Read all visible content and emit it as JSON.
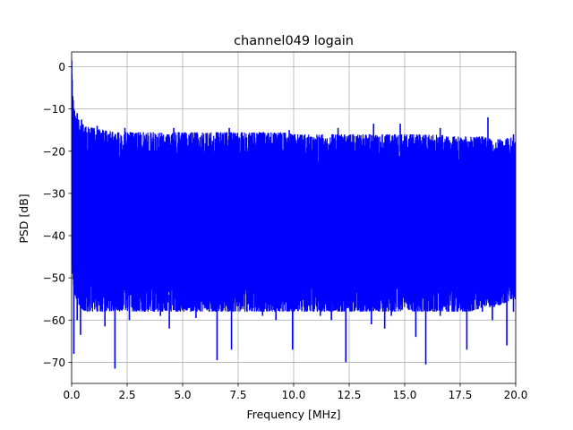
{
  "chart_data": {
    "type": "line",
    "title": "channel049 logain",
    "xlabel": "Frequency [MHz]",
    "ylabel": "PSD [dB]",
    "xlim": [
      0,
      20
    ],
    "ylim": [
      -75,
      3.5
    ],
    "x_ticks": [
      0,
      2.5,
      5,
      7.5,
      10,
      12.5,
      15,
      17.5,
      20
    ],
    "x_tick_labels": [
      "0.0",
      "2.5",
      "5.0",
      "7.5",
      "10.0",
      "12.5",
      "15.0",
      "17.5",
      "20.0"
    ],
    "y_ticks": [
      0,
      -10,
      -20,
      -30,
      -40,
      -50,
      -60,
      -70
    ],
    "y_tick_labels": [
      "0",
      "−10",
      "−20",
      "−30",
      "−40",
      "−50",
      "−60",
      "−70"
    ],
    "grid": true,
    "line_color": "#0000ff",
    "series": [
      {
        "x": [
          0.0,
          0.05,
          0.1,
          0.2,
          0.4,
          0.6,
          1.0,
          1.5,
          2.0,
          2.5,
          3.0,
          3.5,
          4.0,
          4.5,
          5.0,
          5.5,
          6.0,
          6.5,
          7.0,
          7.5,
          8.0,
          8.5,
          9.0,
          9.5,
          10.0,
          10.5,
          11.0,
          11.5,
          12.0,
          12.5,
          13.0,
          13.5,
          14.0,
          14.5,
          15.0,
          15.5,
          16.0,
          16.5,
          17.0,
          17.5,
          18.0,
          18.5,
          19.0,
          19.5,
          20.0
        ],
        "upper_envelope": [
          1.5,
          -6,
          -9.5,
          -12,
          -13,
          -14,
          -14.5,
          -15,
          -15.5,
          -15.5,
          -15.5,
          -15.5,
          -15.5,
          -15.5,
          -15.5,
          -15.5,
          -15.5,
          -15.5,
          -15.5,
          -15.5,
          -15.5,
          -15.5,
          -15.5,
          -15.5,
          -16,
          -16,
          -16,
          -16,
          -16,
          -16,
          -16,
          -16,
          -16,
          -16,
          -16,
          -16,
          -16,
          -16,
          -16.5,
          -16.5,
          -16.5,
          -16.5,
          -17,
          -17,
          -16.5
        ],
        "lower_envelope": [
          -47,
          -50,
          -53,
          -55,
          -57,
          -58,
          -58,
          -58,
          -58,
          -58,
          -58,
          -58,
          -58,
          -58,
          -58,
          -58,
          -58,
          -58,
          -58,
          -58,
          -58,
          -58,
          -58,
          -58,
          -58,
          -58,
          -58,
          -58,
          -58,
          -58,
          -58,
          -58,
          -58,
          -58,
          -58,
          -58,
          -58,
          -58,
          -58,
          -58,
          -58,
          -57,
          -57,
          -56,
          -55
        ],
        "dips": [
          {
            "x": 0.1,
            "y": -68
          },
          {
            "x": 0.25,
            "y": -60
          },
          {
            "x": 0.4,
            "y": -63.5
          },
          {
            "x": 1.15,
            "y": -58
          },
          {
            "x": 1.5,
            "y": -61.5
          },
          {
            "x": 1.95,
            "y": -71.5
          },
          {
            "x": 2.6,
            "y": -60
          },
          {
            "x": 3.3,
            "y": -58
          },
          {
            "x": 4.0,
            "y": -59
          },
          {
            "x": 4.4,
            "y": -62
          },
          {
            "x": 5.6,
            "y": -59.5
          },
          {
            "x": 6.2,
            "y": -58
          },
          {
            "x": 6.55,
            "y": -69.5
          },
          {
            "x": 7.2,
            "y": -67
          },
          {
            "x": 7.9,
            "y": -58
          },
          {
            "x": 8.6,
            "y": -59
          },
          {
            "x": 9.2,
            "y": -60
          },
          {
            "x": 9.95,
            "y": -67
          },
          {
            "x": 10.5,
            "y": -58
          },
          {
            "x": 11.2,
            "y": -59
          },
          {
            "x": 11.7,
            "y": -60
          },
          {
            "x": 12.35,
            "y": -70
          },
          {
            "x": 13.0,
            "y": -58
          },
          {
            "x": 13.5,
            "y": -61
          },
          {
            "x": 14.1,
            "y": -62
          },
          {
            "x": 14.4,
            "y": -59
          },
          {
            "x": 15.5,
            "y": -64
          },
          {
            "x": 15.95,
            "y": -70.5
          },
          {
            "x": 16.6,
            "y": -59
          },
          {
            "x": 17.2,
            "y": -58
          },
          {
            "x": 17.8,
            "y": -67
          },
          {
            "x": 18.5,
            "y": -58
          },
          {
            "x": 18.95,
            "y": -60
          },
          {
            "x": 19.6,
            "y": -66
          },
          {
            "x": 19.9,
            "y": -58
          }
        ],
        "peaks": [
          {
            "x": 0.0,
            "y": 1.5
          },
          {
            "x": 0.05,
            "y": -7
          },
          {
            "x": 0.25,
            "y": -11
          },
          {
            "x": 0.45,
            "y": -12.5
          },
          {
            "x": 1.15,
            "y": -14
          },
          {
            "x": 2.4,
            "y": -14.5
          },
          {
            "x": 4.6,
            "y": -14.5
          },
          {
            "x": 7.1,
            "y": -14.5
          },
          {
            "x": 9.8,
            "y": -15
          },
          {
            "x": 12.0,
            "y": -14.5
          },
          {
            "x": 13.6,
            "y": -13.5
          },
          {
            "x": 14.8,
            "y": -13.5
          },
          {
            "x": 16.6,
            "y": -14.5
          },
          {
            "x": 18.75,
            "y": -12
          },
          {
            "x": 19.9,
            "y": -16
          }
        ]
      }
    ]
  }
}
